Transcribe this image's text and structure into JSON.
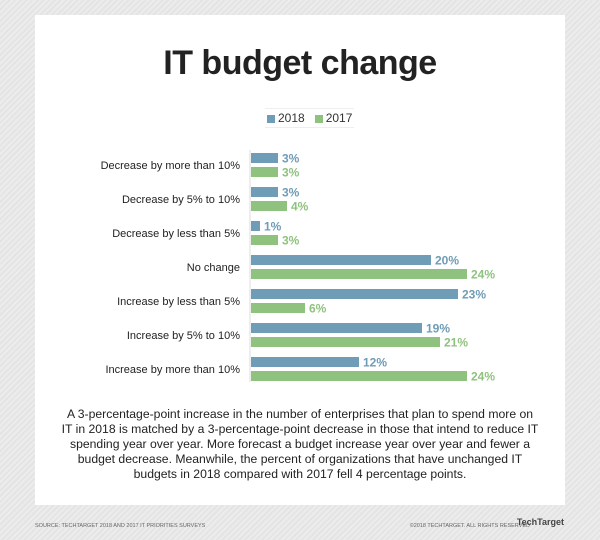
{
  "chart_data": {
    "type": "bar",
    "orientation": "horizontal",
    "title": "IT budget change",
    "categories": [
      "Decrease by more than 10%",
      "Decrease by 5% to 10%",
      "Decrease by less than 5%",
      "No change",
      "Increase by less than 5%",
      "Increase by 5% to 10%",
      "Increase by more than 10%"
    ],
    "series": [
      {
        "name": "2018",
        "color": "#6f9cb6",
        "values": [
          3,
          3,
          1,
          20,
          23,
          19,
          12
        ]
      },
      {
        "name": "2017",
        "color": "#8fc27f",
        "values": [
          3,
          4,
          3,
          24,
          6,
          21,
          24
        ]
      }
    ],
    "value_suffix": "%",
    "xlim": [
      0,
      25
    ],
    "grid": false,
    "legend": "top-center"
  },
  "caption": "A 3-percentage-point increase in the number of enterprises that plan to spend more on IT in 2018 is matched by a 3-percentage-point decrease in those that intend to reduce IT spending year over year. More forecast a budget increase year over year and fewer a budget decrease. Meanwhile, the percent of organizations that have unchanged IT budgets in 2018 compared with 2017 fell 4 percentage points.",
  "footer": {
    "source": "SOURCE: TECHTARGET 2018 AND 2017 IT PRIORITIES SURVEYS",
    "copyright": "©2018 TECHTARGET. ALL RIGHTS RESERVED",
    "logo": "TechTarget"
  }
}
